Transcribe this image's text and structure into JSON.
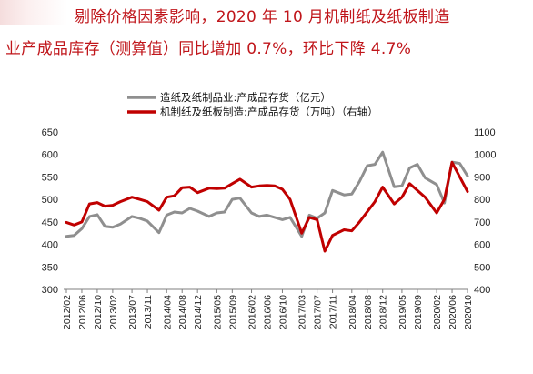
{
  "title": {
    "line1": "剔除价格因素影响，2020 年 10 月机制纸及纸板制造",
    "line2": "业产成品库存（测算值）同比增加 0.7%，环比下降 4.7%"
  },
  "colors": {
    "gray": "#8f8f8f",
    "red": "#c00000",
    "title": "#c0161b"
  },
  "chart_data": {
    "type": "line",
    "title": "剔除价格因素影响，2020 年 10 月机制纸及纸板制造业产成品库存（测算值）同比增加 0.7%，环比下降 4.7%",
    "xlabel": "",
    "ylabel_left": "",
    "ylabel_right": "",
    "ylim_left": [
      300,
      650
    ],
    "ylim_right": [
      400,
      1100
    ],
    "yticks_left": [
      "300",
      "350",
      "400",
      "450",
      "500",
      "550",
      "600",
      "650"
    ],
    "yticks_right": [
      "400",
      "500",
      "600",
      "700",
      "800",
      "900",
      "1000",
      "1100"
    ],
    "xtick_labels": [
      "2012/02",
      "2012/06",
      "2012/10",
      "2013/02",
      "2013/07",
      "2013/11",
      "2014/04",
      "2014/08",
      "2014/12",
      "2015/05",
      "2015/09",
      "2016/02",
      "2016/06",
      "2016/10",
      "2017/03",
      "2017/07",
      "2017/11",
      "2018/04",
      "2018/08",
      "2018/12",
      "2019/05",
      "2019/09",
      "2020/02",
      "2020/06",
      "2020/10"
    ],
    "grid": false,
    "legend_position": "top-center",
    "x": [
      "2012/02",
      "2012/04",
      "2012/06",
      "2012/08",
      "2012/10",
      "2012/12",
      "2013/02",
      "2013/04",
      "2013/07",
      "2013/09",
      "2013/11",
      "2014/02",
      "2014/04",
      "2014/06",
      "2014/08",
      "2014/10",
      "2014/12",
      "2015/03",
      "2015/05",
      "2015/07",
      "2015/09",
      "2015/11",
      "2016/02",
      "2016/04",
      "2016/06",
      "2016/08",
      "2016/10",
      "2016/12",
      "2017/03",
      "2017/05",
      "2017/07",
      "2017/09",
      "2017/11",
      "2018/02",
      "2018/04",
      "2018/06",
      "2018/08",
      "2018/10",
      "2018/12",
      "2019/03",
      "2019/05",
      "2019/07",
      "2019/09",
      "2019/11",
      "2020/02",
      "2020/04",
      "2020/06",
      "2020/08",
      "2020/10"
    ],
    "series": [
      {
        "name": "造纸及纸制品业:产成品存货（亿元）",
        "axis": "left",
        "color": "#8f8f8f",
        "values": [
          418,
          420,
          435,
          462,
          466,
          440,
          438,
          445,
          462,
          458,
          452,
          426,
          465,
          472,
          470,
          480,
          474,
          462,
          470,
          472,
          500,
          503,
          470,
          462,
          465,
          460,
          455,
          460,
          418,
          465,
          458,
          470,
          520,
          510,
          512,
          540,
          575,
          578,
          605,
          528,
          530,
          570,
          578,
          548,
          533,
          492,
          583,
          580,
          552
        ]
      },
      {
        "name": "机制纸及纸板制造:产成品存货（万吨）（右轴）",
        "axis": "right",
        "color": "#c00000",
        "values": [
          698,
          686,
          700,
          780,
          786,
          770,
          774,
          790,
          810,
          800,
          790,
          752,
          810,
          816,
          852,
          855,
          830,
          850,
          848,
          850,
          870,
          890,
          855,
          860,
          862,
          860,
          845,
          800,
          650,
          720,
          710,
          570,
          640,
          665,
          660,
          700,
          745,
          790,
          855,
          780,
          810,
          870,
          840,
          810,
          740,
          800,
          965,
          900,
          835
        ]
      }
    ]
  }
}
